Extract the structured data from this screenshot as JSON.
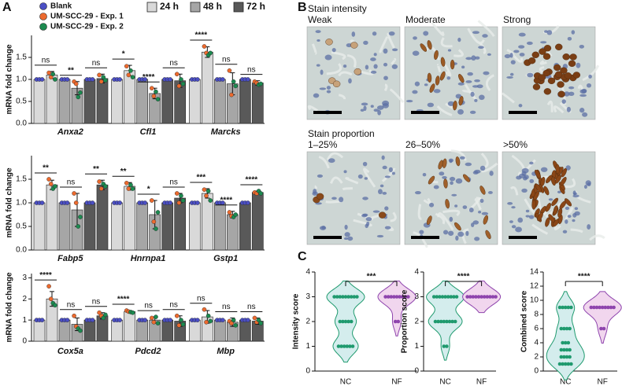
{
  "panel_labels": [
    "A",
    "B",
    "C"
  ],
  "legend": {
    "points": [
      {
        "name": "Blank",
        "color": "#4b4fc4"
      },
      {
        "name": "UM-SCC-29 - Exp. 1",
        "color": "#ec6a2e"
      },
      {
        "name": "UM-SCC-29 - Exp. 2",
        "color": "#1c8a50"
      }
    ]
  },
  "micrographs": {
    "rows": [
      {
        "title": "Stain intensity",
        "labels": [
          "Weak",
          "Moderate",
          "Strong"
        ]
      },
      {
        "title": "Stain proportion",
        "labels": [
          "1–25%",
          "26–50%",
          ">50%"
        ]
      }
    ]
  },
  "chart_data": [
    {
      "type": "bar",
      "ylabel": "mRNA fold change",
      "categories": [
        "Anxa2",
        "Cfl1",
        "Marcks"
      ],
      "ylim": [
        0,
        2
      ],
      "yticks": [
        {
          "value": 0,
          "label": "0.0"
        },
        0.5,
        {
          "value": 1,
          "label": "1.0"
        },
        1.5
      ],
      "series": [
        {
          "name": "24 h",
          "color": "#d9d9d9",
          "blank": [
            1,
            1,
            1
          ],
          "values": [
            1.1,
            1.2,
            1.62
          ],
          "errors": [
            0.08,
            0.12,
            0.12
          ],
          "significance": [
            "ns",
            "*",
            "****"
          ],
          "exp1_points": [
            [
              1.15,
              1.05
            ],
            [
              1.3,
              1.1
            ],
            [
              1.75,
              1.6
            ]
          ],
          "exp2_points": [
            [
              1.12,
              1.0
            ],
            [
              1.2,
              1.05
            ],
            [
              1.55,
              1.6
            ]
          ]
        },
        {
          "name": "48 h",
          "color": "#a6a6a6",
          "blank": [
            1,
            1,
            1
          ],
          "values": [
            0.8,
            0.68,
            0.9
          ],
          "errors": [
            0.15,
            0.12,
            0.25
          ],
          "significance": [
            "**",
            "****",
            "ns"
          ],
          "exp1_points": [
            [
              0.95,
              0.9
            ],
            [
              0.8,
              0.62
            ],
            [
              1.2,
              0.65
            ]
          ],
          "exp2_points": [
            [
              0.6,
              0.7
            ],
            [
              0.72,
              0.55
            ],
            [
              0.95,
              0.85
            ]
          ]
        },
        {
          "name": "72 h",
          "color": "#595959",
          "blank": [
            1,
            1,
            1
          ],
          "values": [
            1.02,
            0.97,
            0.92
          ],
          "errors": [
            0.1,
            0.15,
            0.05
          ],
          "significance": [
            "ns",
            "ns",
            "ns"
          ],
          "exp1_points": [
            [
              1.1,
              0.95
            ],
            [
              1.12,
              0.85
            ],
            [
              0.95,
              0.92
            ]
          ],
          "exp2_points": [
            [
              1.05,
              0.98
            ],
            [
              1.0,
              0.9
            ],
            [
              0.88,
              0.9
            ]
          ]
        }
      ]
    },
    {
      "type": "bar",
      "ylabel": "mRNA fold change",
      "categories": [
        "Fabp5",
        "Hnrnpa1",
        "Gstp1"
      ],
      "ylim": [
        0,
        2
      ],
      "yticks": [
        {
          "value": 0,
          "label": "0.0"
        },
        0.5,
        {
          "value": 1,
          "label": "1.0"
        },
        1.5
      ],
      "series": [
        {
          "color": "#d9d9d9",
          "blank": [
            1,
            1,
            1
          ],
          "values": [
            1.38,
            1.35,
            1.2
          ],
          "errors": [
            0.1,
            0.08,
            0.1
          ],
          "significance": [
            "**",
            "**",
            "***"
          ],
          "exp1_points": [
            [
              1.5,
              1.4
            ],
            [
              1.42,
              1.3
            ],
            [
              1.28,
              1.15
            ]
          ],
          "exp2_points": [
            [
              1.3,
              1.35
            ],
            [
              1.38,
              1.3
            ],
            [
              1.25,
              1.05
            ]
          ]
        },
        {
          "color": "#a6a6a6",
          "blank": [
            1,
            1,
            1
          ],
          "values": [
            0.85,
            0.75,
            0.75
          ],
          "errors": [
            0.35,
            0.3,
            0.07
          ],
          "significance": [
            "ns",
            "*",
            "****"
          ],
          "exp1_points": [
            [
              1.2,
              1.0
            ],
            [
              1.05,
              0.6
            ],
            [
              0.8,
              0.72
            ]
          ],
          "exp2_points": [
            [
              0.5,
              0.7
            ],
            [
              0.45,
              0.8
            ],
            [
              0.7,
              0.75
            ]
          ]
        },
        {
          "color": "#595959",
          "blank": [
            1,
            1,
            1
          ],
          "values": [
            1.38,
            1.1,
            1.22
          ],
          "errors": [
            0.1,
            0.1,
            0.03
          ],
          "significance": [
            "**",
            "ns",
            "****"
          ],
          "exp1_points": [
            [
              1.45,
              1.3
            ],
            [
              1.2,
              1.0
            ],
            [
              1.22,
              1.2
            ]
          ],
          "exp2_points": [
            [
              1.4,
              1.35
            ],
            [
              1.15,
              1.05
            ],
            [
              1.25,
              1.2
            ]
          ]
        }
      ]
    },
    {
      "type": "bar",
      "ylabel": "mRNA fold change",
      "categories": [
        "Cox5a",
        "Pdcd2",
        "Mbp"
      ],
      "ylim": [
        0,
        3.2
      ],
      "yticks": [
        0,
        1,
        2,
        3
      ],
      "series": [
        {
          "color": "#d9d9d9",
          "blank": [
            1,
            1,
            1
          ],
          "values": [
            2.0,
            1.4,
            1.15
          ],
          "errors": [
            0.35,
            0.05,
            0.3
          ],
          "significance": [
            "****",
            "****",
            "ns"
          ],
          "exp1_points": [
            [
              2.6,
              2.0
            ],
            [
              1.45,
              1.4
            ],
            [
              1.5,
              0.9
            ]
          ],
          "exp2_points": [
            [
              1.8,
              1.7
            ],
            [
              1.38,
              1.35
            ],
            [
              1.2,
              0.95
            ]
          ]
        },
        {
          "color": "#a6a6a6",
          "blank": [
            1,
            1,
            1
          ],
          "values": [
            0.8,
            1.0,
            0.9
          ],
          "errors": [
            0.3,
            0.15,
            0.2
          ],
          "significance": [
            "ns",
            "ns",
            "ns"
          ],
          "exp1_points": [
            [
              1.2,
              0.7
            ],
            [
              1.1,
              0.9
            ],
            [
              0.95,
              0.85
            ]
          ],
          "exp2_points": [
            [
              0.6,
              0.5
            ],
            [
              1.15,
              0.85
            ],
            [
              1.0,
              0.75
            ]
          ]
        },
        {
          "color": "#595959",
          "blank": [
            1,
            1,
            1
          ],
          "values": [
            1.2,
            0.95,
            0.95
          ],
          "errors": [
            0.15,
            0.25,
            0.15
          ],
          "significance": [
            "ns",
            "ns",
            "ns"
          ],
          "exp1_points": [
            [
              1.35,
              1.2
            ],
            [
              1.2,
              0.75
            ],
            [
              1.1,
              0.9
            ]
          ],
          "exp2_points": [
            [
              1.1,
              1.25
            ],
            [
              1.0,
              0.8
            ],
            [
              1.0,
              0.85
            ]
          ]
        }
      ]
    },
    {
      "type": "violin",
      "ylabel": "Intensity score",
      "categories": [
        "NC",
        "NF"
      ],
      "ylim": [
        0,
        4
      ],
      "yticks": [
        0,
        1,
        2,
        3,
        4
      ],
      "significance": "***",
      "series": [
        {
          "color": "#1f9a6e",
          "fill": "#d4eded",
          "values": [
            3,
            3,
            3,
            3,
            3,
            3,
            3,
            3,
            3,
            2,
            2,
            2,
            2,
            2,
            1,
            1,
            1,
            1,
            1,
            1
          ]
        },
        {
          "color": "#8e44ad",
          "fill": "#f1d6ee",
          "values": [
            3,
            3,
            3,
            3,
            3,
            3,
            3,
            3,
            3,
            2,
            2
          ]
        }
      ]
    },
    {
      "type": "violin",
      "ylabel": "Proportion score",
      "categories": [
        "NC",
        "NF"
      ],
      "ylim": [
        0,
        4
      ],
      "yticks": [
        0,
        1,
        2,
        3,
        4
      ],
      "significance": "****",
      "series": [
        {
          "color": "#1f9a6e",
          "fill": "#d4eded",
          "values": [
            3,
            3,
            3,
            3,
            3,
            3,
            3,
            3,
            3,
            2,
            2,
            2,
            2,
            2,
            2,
            2,
            2,
            1,
            1
          ]
        },
        {
          "color": "#8e44ad",
          "fill": "#f1d6ee",
          "values": [
            3,
            3,
            3,
            3,
            3,
            3,
            3,
            3,
            3,
            3,
            3
          ]
        }
      ]
    },
    {
      "type": "violin",
      "ylabel": "Combined score",
      "categories": [
        "NC",
        "NF"
      ],
      "ylim": [
        0,
        14
      ],
      "yticks": [
        0,
        2,
        4,
        6,
        8,
        10,
        12,
        14
      ],
      "significance": "****",
      "series": [
        {
          "color": "#1f9a6e",
          "fill": "#d4eded",
          "values": [
            9,
            9,
            9,
            9,
            9,
            6,
            6,
            6,
            6,
            4,
            4,
            4,
            3,
            3,
            3,
            3,
            2,
            2,
            2,
            2,
            1,
            1,
            1,
            1,
            1
          ]
        },
        {
          "color": "#8e44ad",
          "fill": "#f1d6ee",
          "values": [
            9,
            9,
            9,
            9,
            9,
            9,
            9,
            9,
            9,
            6,
            6
          ]
        }
      ]
    }
  ]
}
